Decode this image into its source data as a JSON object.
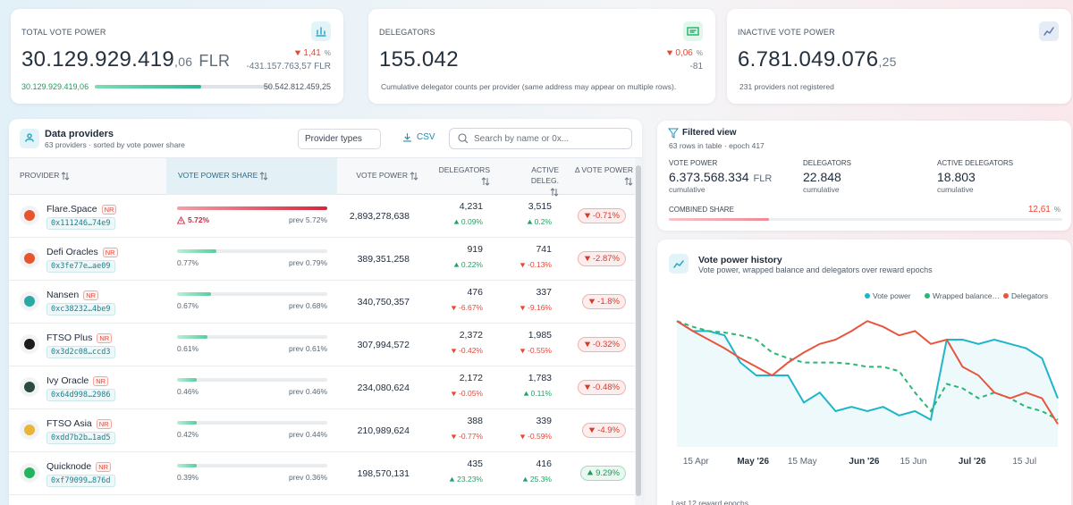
{
  "cards": [
    {
      "title": "TOTAL VOTE POWER",
      "value": "30.129.929.419",
      "decimals": ",06",
      "unit": "FLR",
      "change": "1,41",
      "change_unit": "%",
      "delta": "-431.157.763,57 FLR",
      "progress_from": "30.129.929.419,06",
      "progress_to": "50.542.812.459,25"
    },
    {
      "title": "DELEGATORS",
      "value": "155.042",
      "change": "0,06",
      "change_unit": "%",
      "delta": "-81",
      "note": "Cumulative delegator counts per provider (same address may appear on multiple rows)."
    },
    {
      "title": "INACTIVE VOTE POWER",
      "value": "6.781.049.076",
      "decimals": ",25",
      "note": "231 providers not registered"
    }
  ],
  "providers": {
    "title": "Data providers",
    "subtitle": "63 providers · sorted by vote power share",
    "filter": "Provider types",
    "export": "CSV",
    "search_placeholder": "Search by name or 0x...",
    "columns": [
      "PROVIDER",
      "VOTE POWER SHARE",
      "VOTE POWER",
      "DELEGATORS",
      "ACTIVE DELEG.",
      "Δ VOTE POWER"
    ],
    "rows": [
      {
        "name": "Flare.Space",
        "badge": "NR",
        "address": "0x111246…74e9",
        "share": "5.72%",
        "prev": "prev 5.72%",
        "vote_power": "2,893,278,638",
        "delegators": "4,231",
        "delegators_change": "0.09%",
        "active": "3,515",
        "active_change": "0.2%",
        "delta": "-0.71%"
      },
      {
        "name": "Defi Oracles",
        "badge": "NR",
        "address": "0x3fe77e…ae09",
        "share": "0.77%",
        "prev": "prev 0.79%",
        "vote_power": "389,351,258",
        "delegators": "919",
        "delegators_change": "0.22%",
        "active": "741",
        "active_change": "-0.13%",
        "delta": "-2.87%"
      },
      {
        "name": "Nansen",
        "badge": "NR",
        "address": "0xc38232…4be9",
        "share": "0.67%",
        "prev": "prev 0.68%",
        "vote_power": "340,750,357",
        "delegators": "476",
        "delegators_change": "-6.67%",
        "active": "337",
        "active_change": "-9.16%",
        "delta": "-1.8%"
      },
      {
        "name": "FTSO Plus",
        "badge": "NR",
        "address": "0x3d2c08…ccd3",
        "share": "0.61%",
        "prev": "prev 0.61%",
        "vote_power": "307,994,572",
        "delegators": "2,372",
        "delegators_change": "-0.42%",
        "active": "1,985",
        "active_change": "-0.55%",
        "delta": "-0.32%"
      },
      {
        "name": "Ivy Oracle",
        "badge": "NR",
        "address": "0x64d998…2986",
        "share": "0.46%",
        "prev": "prev 0.46%",
        "vote_power": "234,080,624",
        "delegators": "2,172",
        "delegators_change": "-0.05%",
        "active": "1,783",
        "active_change": "0.11%",
        "delta": "-0.48%"
      },
      {
        "name": "FTSO Asia",
        "badge": "NR",
        "address": "0xdd7b2b…1ad5",
        "share": "0.42%",
        "prev": "prev 0.44%",
        "vote_power": "210,989,624",
        "delegators": "388",
        "delegators_change": "-0.77%",
        "active": "339",
        "active_change": "-0.59%",
        "delta": "-4.9%"
      },
      {
        "name": "Quicknode",
        "badge": "NR",
        "address": "0xf79099…876d",
        "share": "0.39%",
        "prev": "prev 0.36%",
        "vote_power": "198,570,131",
        "delegators": "435",
        "delegators_change": "23.23%",
        "active": "416",
        "active_change": "25.3%",
        "delta": "9.29%"
      }
    ]
  },
  "filtered": {
    "title": "Filtered view",
    "subtitle": "63 rows in table · epoch 417",
    "stats": [
      {
        "label": "VOTE POWER",
        "value": "6.373.568.334",
        "unit": "FLR",
        "note": "cumulative"
      },
      {
        "label": "DELEGATORS",
        "value": "22.848",
        "note": "cumulative"
      },
      {
        "label": "ACTIVE DELEGATORS",
        "value": "18.803",
        "note": "cumulative"
      }
    ],
    "combined_label": "COMBINED SHARE",
    "combined_value": "12,61",
    "combined_unit": "%"
  },
  "history": {
    "type": "line",
    "title": "Vote power history",
    "subtitle": "Vote power, wrapped balance and delegators over reward epochs",
    "footer": "Last 12 reward epochs",
    "x": [
      0,
      1,
      2,
      3,
      4,
      5,
      6,
      7,
      8,
      9,
      10,
      11,
      12,
      13,
      14,
      15,
      16,
      17,
      18,
      19,
      20,
      21,
      22,
      23,
      24
    ],
    "xlim": [
      0,
      24
    ],
    "ylim": [
      0,
      100
    ],
    "xticks": [
      {
        "value": 1.2,
        "label": "15 Apr"
      },
      {
        "value": 4.8,
        "label": "May '26"
      },
      {
        "value": 7.9,
        "label": "15 May"
      },
      {
        "value": 11.8,
        "label": "Jun '26"
      },
      {
        "value": 14.9,
        "label": "15 Jun"
      },
      {
        "value": 18.6,
        "label": "Jul '26"
      },
      {
        "value": 21.9,
        "label": "15 Jul"
      }
    ],
    "series": [
      {
        "name": "Vote power",
        "color": "#1fb5c9",
        "values": [
          88,
          81,
          81,
          78,
          59,
          50,
          50,
          50,
          31,
          38,
          25,
          28,
          25,
          28,
          22,
          25,
          19,
          75,
          75,
          72,
          75,
          72,
          69,
          62,
          34
        ]
      },
      {
        "name": "Wrapped balance…",
        "color": "#2bb673",
        "values": [
          88,
          84,
          81,
          80,
          78,
          75,
          66,
          62,
          59,
          59,
          59,
          58,
          56,
          56,
          53,
          38,
          25,
          44,
          41,
          34,
          38,
          34,
          28,
          25,
          19
        ]
      },
      {
        "name": "Delegators",
        "color": "#e8553e",
        "values": [
          88,
          81,
          75,
          69,
          62,
          56,
          50,
          59,
          66,
          72,
          75,
          81,
          88,
          84,
          78,
          81,
          72,
          75,
          56,
          50,
          38,
          34,
          38,
          34,
          16
        ]
      }
    ]
  }
}
